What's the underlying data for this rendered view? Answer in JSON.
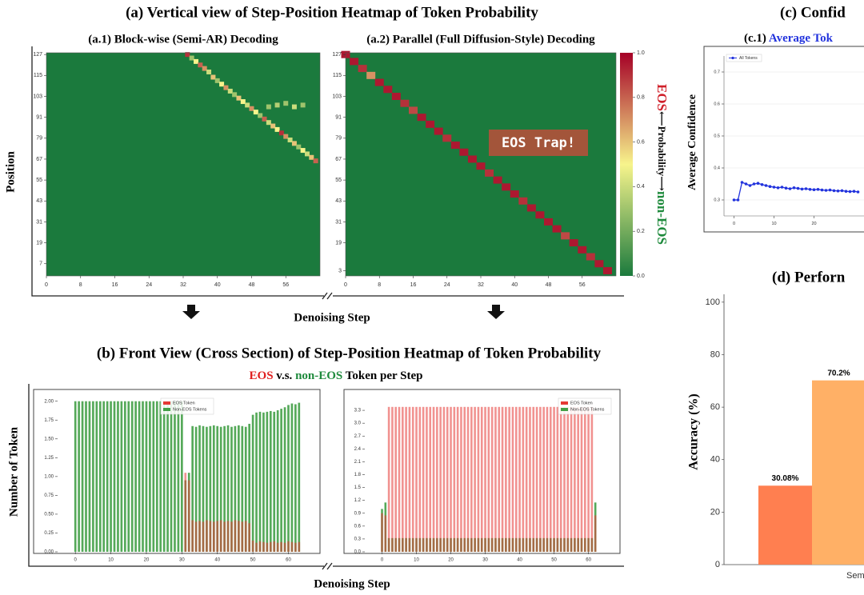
{
  "headings": {
    "a": "(a) Vertical view of Step-Position Heatmap of Token Probability",
    "a_xlabel": "Denoising Step",
    "a_ylabel": "Position",
    "b": "(b) Front View (Cross Section) of Step-Position Heatmap of Token Probability",
    "b_subtitle": [
      "EOS",
      "v.s.",
      "non-EOS",
      "Token per Step"
    ],
    "b_xlabel": "Denoising Step",
    "b_ylabel": "Number of Token",
    "c": "(c) Confid",
    "d": "(d) Perforn"
  },
  "chart_data": [
    {
      "type": "heatmap",
      "title": "(a.1) Block-wise (Semi-AR) Decoding",
      "xlim": [
        0,
        64
      ],
      "ylim": [
        0,
        128
      ],
      "xticks": [
        0,
        8,
        16,
        24,
        32,
        40,
        48,
        56
      ],
      "yticks": [
        7,
        19,
        31,
        43,
        55,
        67,
        79,
        91,
        103,
        115,
        127
      ],
      "clim": [
        0,
        1
      ],
      "colorscale": [
        "#1b7a3d",
        "#f7f48c",
        "#a50026"
      ],
      "background_value": 0,
      "x": [
        33,
        34,
        35,
        36,
        37,
        38,
        39,
        40,
        41,
        42,
        43,
        44,
        45,
        46,
        47,
        48,
        49,
        50,
        51,
        52,
        53,
        54,
        55,
        56,
        57,
        58,
        59,
        60,
        61,
        62,
        63,
        52,
        54,
        56,
        58,
        60
      ],
      "y": [
        127,
        125,
        123,
        121,
        119,
        117,
        114,
        112,
        110,
        108,
        106,
        104,
        102,
        100,
        98,
        96,
        94,
        92,
        90,
        88,
        86,
        84,
        82,
        80,
        78,
        76,
        74,
        72,
        70,
        68,
        66,
        97,
        98,
        99,
        97,
        98
      ],
      "values": [
        0.9,
        0.3,
        0.5,
        0.8,
        0.7,
        0.4,
        0.6,
        0.3,
        0.5,
        0.7,
        0.4,
        0.3,
        0.6,
        0.5,
        0.4,
        0.7,
        0.5,
        0.3,
        0.8,
        0.4,
        0.6,
        0.5,
        0.9,
        0.7,
        0.4,
        0.6,
        0.3,
        0.5,
        0.4,
        0.6,
        0.8,
        0.3,
        0.35,
        0.3,
        0.4,
        0.3
      ]
    },
    {
      "type": "heatmap",
      "title": "(a.2) Parallel (Full Diffusion-Style) Decoding",
      "xlim": [
        0,
        64
      ],
      "ylim": [
        0,
        128
      ],
      "xticks": [
        0,
        8,
        16,
        24,
        32,
        40,
        48,
        56
      ],
      "yticks": [
        3,
        19,
        31,
        43,
        55,
        67,
        79,
        91,
        103,
        115,
        127
      ],
      "clim": [
        0,
        1
      ],
      "colorscale": [
        "#1b7a3d",
        "#f7f48c",
        "#a50026"
      ],
      "background_value": 0,
      "colorbar_ticks": [
        {
          "value": 0,
          "label": "0.0"
        },
        0.2,
        0.4,
        0.6,
        0.8,
        {
          "value": 1,
          "label": "1.0"
        }
      ],
      "colorbar_labels": [
        "EOS",
        "⟵Probability⟶",
        "non-EOS"
      ],
      "annotation": "EOS Trap!",
      "x": [
        0,
        2,
        4,
        6,
        8,
        10,
        12,
        14,
        16,
        18,
        20,
        22,
        24,
        26,
        28,
        30,
        32,
        34,
        36,
        38,
        40,
        42,
        44,
        46,
        48,
        50,
        52,
        54,
        56,
        58,
        60,
        62
      ],
      "y": [
        127,
        123,
        119,
        115,
        111,
        107,
        103,
        99,
        95,
        91,
        87,
        83,
        79,
        75,
        71,
        67,
        63,
        59,
        55,
        51,
        47,
        43,
        39,
        35,
        31,
        27,
        23,
        19,
        15,
        11,
        7,
        3
      ],
      "values": [
        0.95,
        0.95,
        0.9,
        0.7,
        0.95,
        0.95,
        0.95,
        0.9,
        0.85,
        0.95,
        0.95,
        0.95,
        0.9,
        0.95,
        0.95,
        0.95,
        0.95,
        0.9,
        0.95,
        0.95,
        0.95,
        0.9,
        0.95,
        0.95,
        0.95,
        0.95,
        0.85,
        0.95,
        0.95,
        0.9,
        0.95,
        0.95
      ]
    },
    {
      "type": "bars",
      "legend": "upper center",
      "xlim": [
        -5,
        68
      ],
      "ylim": [
        0,
        2.05
      ],
      "xticks": [
        0,
        10,
        20,
        30,
        40,
        50,
        60
      ],
      "yticks": [
        {
          "value": 0,
          "label": "0.00"
        },
        0.25,
        {
          "value": 0.5,
          "label": "0.50"
        },
        0.75,
        {
          "value": 1,
          "label": "1.00"
        },
        1.25,
        {
          "value": 1.5,
          "label": "1.50"
        },
        1.75,
        {
          "value": 2,
          "label": "2.00"
        }
      ],
      "x": [
        0,
        1,
        2,
        3,
        4,
        5,
        6,
        7,
        8,
        9,
        10,
        11,
        12,
        13,
        14,
        15,
        16,
        17,
        18,
        19,
        20,
        21,
        22,
        23,
        24,
        25,
        26,
        27,
        28,
        29,
        30,
        31,
        32,
        33,
        34,
        35,
        36,
        37,
        38,
        39,
        40,
        41,
        42,
        43,
        44,
        45,
        46,
        47,
        48,
        49,
        50,
        51,
        52,
        53,
        54,
        55,
        56,
        57,
        58,
        59,
        60,
        61,
        62,
        63
      ],
      "series": [
        {
          "name": "EOS Token",
          "color": "#e53935",
          "values": [
            0,
            0,
            0,
            0,
            0,
            0,
            0,
            0,
            0,
            0,
            0,
            0,
            0,
            0,
            0,
            0,
            0,
            0,
            0,
            0,
            0,
            0,
            0,
            0,
            0,
            0,
            0,
            0,
            0,
            0,
            0,
            1.05,
            0.95,
            0.42,
            0.4,
            0.41,
            0.4,
            0.42,
            0.41,
            0.4,
            0.41,
            0.42,
            0.4,
            0.41,
            0.4,
            0.42,
            0.41,
            0.4,
            0.41,
            0.38,
            0.15,
            0.12,
            0.14,
            0.13,
            0.12,
            0.13,
            0.14,
            0.12,
            0.13,
            0.12,
            0.14,
            0.13,
            0.12,
            0.13
          ]
        },
        {
          "name": "Non-EOS Tokens",
          "color": "#43a047",
          "values": [
            2,
            2,
            2,
            2,
            2,
            2,
            2,
            2,
            2,
            2,
            2,
            2,
            2,
            2,
            2,
            2,
            2,
            2,
            2,
            2,
            2,
            2,
            2,
            2,
            2,
            2,
            2,
            2,
            2,
            2,
            2,
            0.95,
            1.05,
            1.67,
            1.66,
            1.68,
            1.67,
            1.66,
            1.67,
            1.68,
            1.67,
            1.66,
            1.67,
            1.68,
            1.66,
            1.67,
            1.68,
            1.67,
            1.66,
            1.7,
            1.82,
            1.85,
            1.86,
            1.85,
            1.86,
            1.87,
            1.86,
            1.88,
            1.9,
            1.92,
            1.95,
            1.97,
            1.96,
            1.98
          ]
        }
      ]
    },
    {
      "type": "bars",
      "legend": "upper right",
      "xlim": [
        -5,
        68
      ],
      "ylim": [
        0,
        3.6
      ],
      "xticks": [
        0,
        10,
        20,
        30,
        40,
        50,
        60
      ],
      "yticks": [
        {
          "value": 0,
          "label": "0.0"
        },
        0.3,
        0.6,
        0.9,
        1.2,
        1.5,
        1.8,
        2.1,
        2.4,
        2.7,
        {
          "value": 3,
          "label": "3.0"
        },
        3.3
      ],
      "x": [
        0,
        1,
        2,
        3,
        4,
        5,
        6,
        7,
        8,
        9,
        10,
        11,
        12,
        13,
        14,
        15,
        16,
        17,
        18,
        19,
        20,
        21,
        22,
        23,
        24,
        25,
        26,
        27,
        28,
        29,
        30,
        31,
        32,
        33,
        34,
        35,
        36,
        37,
        38,
        39,
        40,
        41,
        42,
        43,
        44,
        45,
        46,
        47,
        48,
        49,
        50,
        51,
        52,
        53,
        54,
        55,
        56,
        57,
        58,
        59,
        60,
        61,
        62
      ],
      "series": [
        {
          "name": "EOS Token",
          "color": "#e53935",
          "values": [
            0.9,
            0.85,
            3.38,
            3.38,
            3.38,
            3.38,
            3.38,
            3.38,
            3.38,
            3.38,
            3.38,
            3.38,
            3.38,
            3.38,
            3.38,
            3.38,
            3.38,
            3.38,
            3.38,
            3.38,
            3.38,
            3.38,
            3.38,
            3.38,
            3.38,
            3.38,
            3.38,
            3.38,
            3.38,
            3.38,
            3.38,
            3.38,
            3.38,
            3.38,
            3.38,
            3.38,
            3.38,
            3.38,
            3.38,
            3.38,
            3.38,
            3.38,
            3.38,
            3.38,
            3.38,
            3.38,
            3.38,
            3.38,
            3.38,
            3.38,
            3.38,
            3.38,
            3.38,
            3.38,
            3.38,
            3.38,
            3.38,
            3.38,
            3.38,
            3.38,
            3.38,
            3.38,
            0.85
          ]
        },
        {
          "name": "Non-EOS Tokens",
          "color": "#43a047",
          "values": [
            1,
            1.15,
            0.32,
            0.32,
            0.32,
            0.32,
            0.32,
            0.32,
            0.32,
            0.32,
            0.32,
            0.32,
            0.32,
            0.32,
            0.32,
            0.32,
            0.32,
            0.32,
            0.32,
            0.32,
            0.32,
            0.32,
            0.32,
            0.32,
            0.32,
            0.32,
            0.32,
            0.32,
            0.32,
            0.32,
            0.32,
            0.32,
            0.32,
            0.32,
            0.32,
            0.32,
            0.32,
            0.32,
            0.32,
            0.32,
            0.32,
            0.32,
            0.32,
            0.32,
            0.32,
            0.32,
            0.32,
            0.32,
            0.32,
            0.32,
            0.32,
            0.32,
            0.32,
            0.32,
            0.32,
            0.32,
            0.32,
            0.32,
            0.32,
            0.32,
            0.32,
            0.32,
            1.15
          ]
        }
      ]
    },
    {
      "type": "line",
      "label": "(c.1)",
      "title": "Average Tok",
      "ylabel": "Average Confidence",
      "legend": "upper left",
      "xlim": [
        -2.5,
        32.5
      ],
      "ylim": [
        0.25,
        0.75
      ],
      "xticks": [
        0,
        10,
        20
      ],
      "yticks": [
        0.3,
        0.4,
        0.5,
        0.6,
        0.7
      ],
      "x": [
        0,
        1,
        2,
        3,
        4,
        5,
        6,
        7,
        8,
        9,
        10,
        11,
        12,
        13,
        14,
        15,
        16,
        17,
        18,
        19,
        20,
        21,
        22,
        23,
        24,
        25,
        26,
        27,
        28,
        29,
        30,
        31
      ],
      "series": [
        {
          "name": "All Tokens",
          "color": "#2233dd",
          "values": [
            0.3,
            0.3,
            0.355,
            0.35,
            0.345,
            0.35,
            0.352,
            0.348,
            0.345,
            0.342,
            0.34,
            0.338,
            0.34,
            0.337,
            0.335,
            0.338,
            0.336,
            0.334,
            0.335,
            0.333,
            0.332,
            0.333,
            0.331,
            0.33,
            0.331,
            0.329,
            0.328,
            0.329,
            0.327,
            0.326,
            0.327,
            0.325
          ]
        }
      ]
    },
    {
      "type": "bar",
      "ylabel": "Accuracy (%)",
      "ylim": [
        0,
        103
      ],
      "yticks": [
        0,
        20,
        40,
        60,
        80,
        100
      ],
      "categories": [
        "Sem"
      ],
      "series": [
        {
          "color": "#ff7f50",
          "values": [
            30.08
          ],
          "value_labels": [
            "30.08%"
          ]
        },
        {
          "color": "#ffb066",
          "values": [
            70.2
          ],
          "value_labels": [
            "70.2%"
          ]
        }
      ]
    }
  ]
}
